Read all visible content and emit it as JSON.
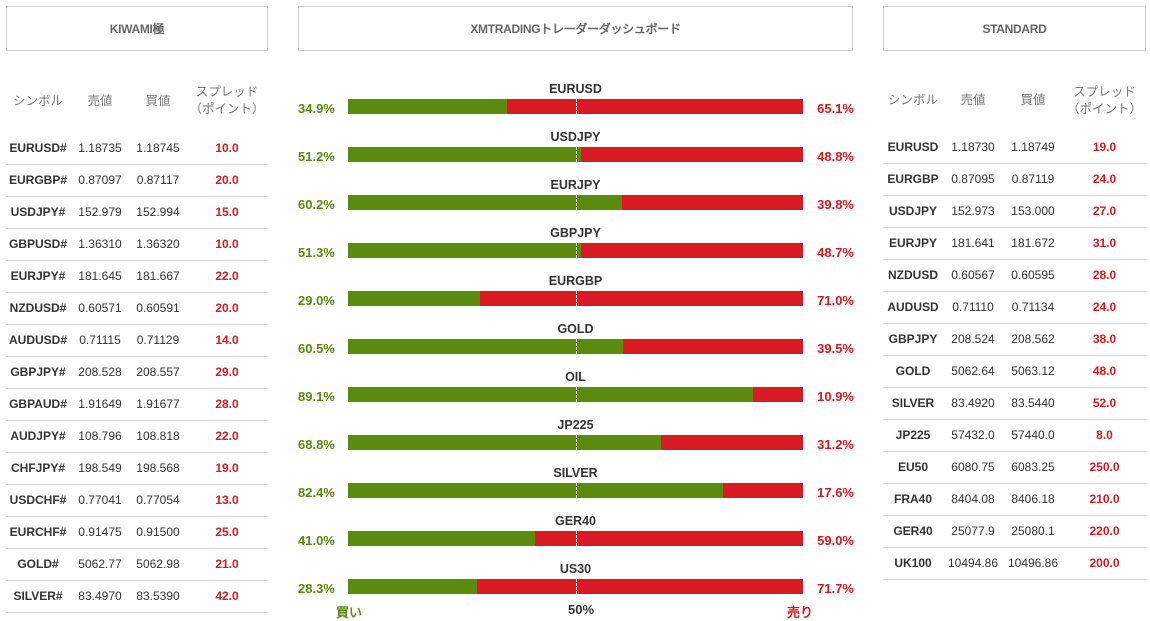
{
  "headers": {
    "left": "KIWAMI極",
    "center": "XMTRADINGトレーダーダッシュボード",
    "right": "STANDARD"
  },
  "columns": {
    "symbol": "シンボル",
    "bid": "売値",
    "ask": "買値",
    "spread_left": "スプレッド（ポイント）",
    "spread_right": "スプレッド（ポイント）"
  },
  "kiwami": [
    {
      "symbol": "EURUSD#",
      "bid": "1.18735",
      "ask": "1.18745",
      "spread": "10.0"
    },
    {
      "symbol": "EURGBP#",
      "bid": "0.87097",
      "ask": "0.87117",
      "spread": "20.0"
    },
    {
      "symbol": "USDJPY#",
      "bid": "152.979",
      "ask": "152.994",
      "spread": "15.0"
    },
    {
      "symbol": "GBPUSD#",
      "bid": "1.36310",
      "ask": "1.36320",
      "spread": "10.0"
    },
    {
      "symbol": "EURJPY#",
      "bid": "181.645",
      "ask": "181.667",
      "spread": "22.0"
    },
    {
      "symbol": "NZDUSD#",
      "bid": "0.60571",
      "ask": "0.60591",
      "spread": "20.0"
    },
    {
      "symbol": "AUDUSD#",
      "bid": "0.71115",
      "ask": "0.71129",
      "spread": "14.0"
    },
    {
      "symbol": "GBPJPY#",
      "bid": "208.528",
      "ask": "208.557",
      "spread": "29.0"
    },
    {
      "symbol": "GBPAUD#",
      "bid": "1.91649",
      "ask": "1.91677",
      "spread": "28.0"
    },
    {
      "symbol": "AUDJPY#",
      "bid": "108.796",
      "ask": "108.818",
      "spread": "22.0"
    },
    {
      "symbol": "CHFJPY#",
      "bid": "198.549",
      "ask": "198.568",
      "spread": "19.0"
    },
    {
      "symbol": "USDCHF#",
      "bid": "0.77041",
      "ask": "0.77054",
      "spread": "13.0"
    },
    {
      "symbol": "EURCHF#",
      "bid": "0.91475",
      "ask": "0.91500",
      "spread": "25.0"
    },
    {
      "symbol": "GOLD#",
      "bid": "5062.77",
      "ask": "5062.98",
      "spread": "21.0"
    },
    {
      "symbol": "SILVER#",
      "bid": "83.4970",
      "ask": "83.5390",
      "spread": "42.0"
    }
  ],
  "standard": [
    {
      "symbol": "EURUSD",
      "bid": "1.18730",
      "ask": "1.18749",
      "spread": "19.0"
    },
    {
      "symbol": "EURGBP",
      "bid": "0.87095",
      "ask": "0.87119",
      "spread": "24.0"
    },
    {
      "symbol": "USDJPY",
      "bid": "152.973",
      "ask": "153.000",
      "spread": "27.0"
    },
    {
      "symbol": "EURJPY",
      "bid": "181.641",
      "ask": "181.672",
      "spread": "31.0"
    },
    {
      "symbol": "NZDUSD",
      "bid": "0.60567",
      "ask": "0.60595",
      "spread": "28.0"
    },
    {
      "symbol": "AUDUSD",
      "bid": "0.71110",
      "ask": "0.71134",
      "spread": "24.0"
    },
    {
      "symbol": "GBPJPY",
      "bid": "208.524",
      "ask": "208.562",
      "spread": "38.0"
    },
    {
      "symbol": "GOLD",
      "bid": "5062.64",
      "ask": "5063.12",
      "spread": "48.0"
    },
    {
      "symbol": "SILVER",
      "bid": "83.4920",
      "ask": "83.5440",
      "spread": "52.0"
    },
    {
      "symbol": "JP225",
      "bid": "57432.0",
      "ask": "57440.0",
      "spread": "8.0"
    },
    {
      "symbol": "EU50",
      "bid": "6080.75",
      "ask": "6083.25",
      "spread": "250.0"
    },
    {
      "symbol": "FRA40",
      "bid": "8404.08",
      "ask": "8406.18",
      "spread": "210.0"
    },
    {
      "symbol": "GER40",
      "bid": "25077.9",
      "ask": "25080.1",
      "spread": "220.0"
    },
    {
      "symbol": "UK100",
      "bid": "10494.86",
      "ask": "10496.86",
      "spread": "200.0"
    }
  ],
  "sentiment": [
    {
      "symbol": "EURUSD",
      "buy": "34.9%",
      "sell": "65.1%",
      "buy_value": 34.9
    },
    {
      "symbol": "USDJPY",
      "buy": "51.2%",
      "sell": "48.8%",
      "buy_value": 51.2
    },
    {
      "symbol": "EURJPY",
      "buy": "60.2%",
      "sell": "39.8%",
      "buy_value": 60.2
    },
    {
      "symbol": "GBPJPY",
      "buy": "51.3%",
      "sell": "48.7%",
      "buy_value": 51.3
    },
    {
      "symbol": "EURGBP",
      "buy": "29.0%",
      "sell": "71.0%",
      "buy_value": 29.0
    },
    {
      "symbol": "GOLD",
      "buy": "60.5%",
      "sell": "39.5%",
      "buy_value": 60.5
    },
    {
      "symbol": "OIL",
      "buy": "89.1%",
      "sell": "10.9%",
      "buy_value": 89.1
    },
    {
      "symbol": "JP225",
      "buy": "68.8%",
      "sell": "31.2%",
      "buy_value": 68.8
    },
    {
      "symbol": "SILVER",
      "buy": "82.4%",
      "sell": "17.6%",
      "buy_value": 82.4
    },
    {
      "symbol": "GER40",
      "buy": "41.0%",
      "sell": "59.0%",
      "buy_value": 41.0
    },
    {
      "symbol": "US30",
      "buy": "28.3%",
      "sell": "71.7%",
      "buy_value": 28.3
    }
  ],
  "axis": {
    "buy": "買い",
    "mid": "50%",
    "sell": "売り"
  },
  "colors": {
    "buy": "#5a8a0e",
    "sell": "#d91c24"
  }
}
